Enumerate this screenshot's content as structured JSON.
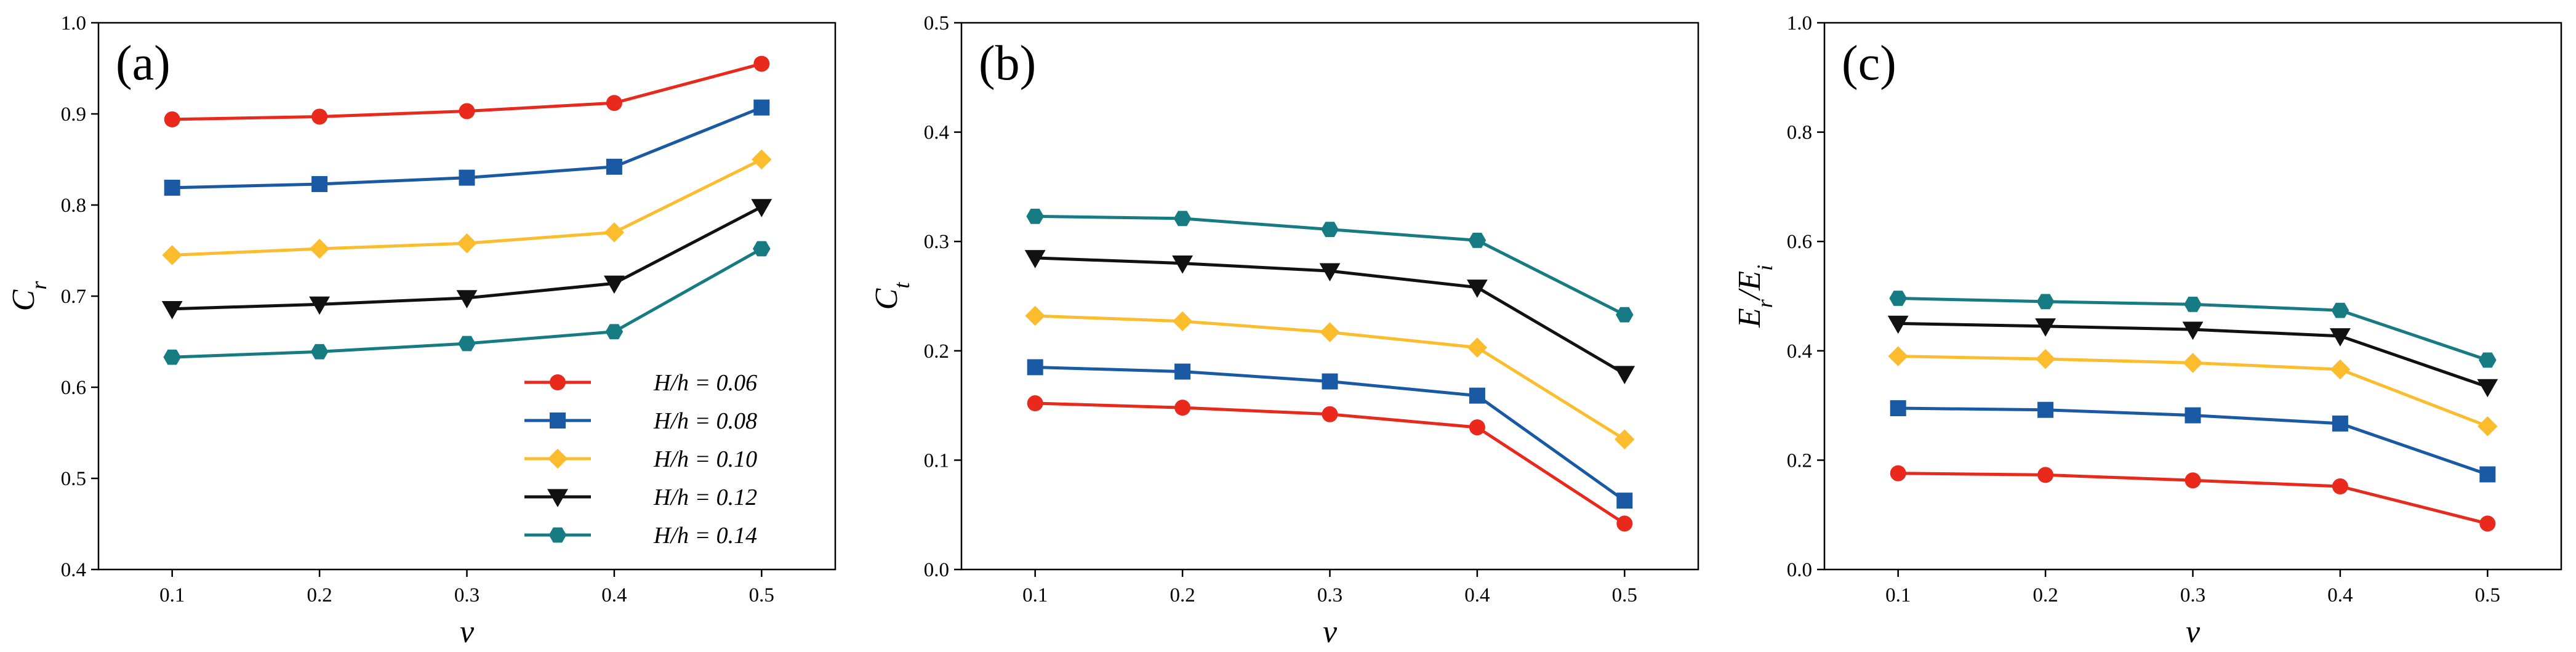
{
  "figure": {
    "title": "",
    "x_symbol": "v"
  },
  "colors": {
    "s006": "#e8291c",
    "s008": "#1a5aa5",
    "s010": "#fbbd2e",
    "s012": "#111111",
    "s014": "#167b82"
  },
  "legend": [
    {
      "label": "H/h = 0.06",
      "marker": "circle",
      "color_key": "s006"
    },
    {
      "label": "H/h = 0.08",
      "marker": "square",
      "color_key": "s008"
    },
    {
      "label": "H/h = 0.10",
      "marker": "diamond",
      "color_key": "s010"
    },
    {
      "label": "H/h = 0.12",
      "marker": "triangle-down",
      "color_key": "s012"
    },
    {
      "label": "H/h = 0.14",
      "marker": "hexagon",
      "color_key": "s014"
    }
  ],
  "chart_data": [
    {
      "type": "line",
      "panel_label": "(a)",
      "xlabel": "v",
      "ylabel_main": "C",
      "ylabel_sub": "r",
      "x": [
        0.1,
        0.2,
        0.3,
        0.4,
        0.5
      ],
      "xticks": [
        "0.1",
        "0.2",
        "0.3",
        "0.4",
        "0.5"
      ],
      "xlim": [
        0.05,
        0.55
      ],
      "ylim": [
        0.4,
        1.0
      ],
      "yticks": [
        "0.4",
        "0.5",
        "0.6",
        "0.7",
        "0.8",
        "0.9",
        "1.0"
      ],
      "ytick_values": [
        0.4,
        0.5,
        0.6,
        0.7,
        0.8,
        0.9,
        1.0
      ],
      "legend_position": "lower-right",
      "series": [
        {
          "name": "H/h = 0.06",
          "values": [
            0.894,
            0.897,
            0.903,
            0.912,
            0.955
          ]
        },
        {
          "name": "H/h = 0.08",
          "values": [
            0.819,
            0.823,
            0.83,
            0.842,
            0.907
          ]
        },
        {
          "name": "H/h = 0.10",
          "values": [
            0.745,
            0.752,
            0.758,
            0.77,
            0.85
          ]
        },
        {
          "name": "H/h = 0.12",
          "values": [
            0.686,
            0.691,
            0.698,
            0.714,
            0.798
          ]
        },
        {
          "name": "H/h = 0.14",
          "values": [
            0.633,
            0.639,
            0.648,
            0.661,
            0.752
          ]
        }
      ]
    },
    {
      "type": "line",
      "panel_label": "(b)",
      "xlabel": "v",
      "ylabel_main": "C",
      "ylabel_sub": "t",
      "x": [
        0.1,
        0.2,
        0.3,
        0.4,
        0.5
      ],
      "xticks": [
        "0.1",
        "0.2",
        "0.3",
        "0.4",
        "0.5"
      ],
      "xlim": [
        0.05,
        0.55
      ],
      "ylim": [
        0.0,
        0.5
      ],
      "yticks": [
        "0.0",
        "0.1",
        "0.2",
        "0.3",
        "0.4",
        "0.5"
      ],
      "ytick_values": [
        0.0,
        0.1,
        0.2,
        0.3,
        0.4,
        0.5
      ],
      "series": [
        {
          "name": "H/h = 0.06",
          "values": [
            0.152,
            0.148,
            0.142,
            0.13,
            0.042
          ]
        },
        {
          "name": "H/h = 0.08",
          "values": [
            0.185,
            0.181,
            0.172,
            0.159,
            0.063
          ]
        },
        {
          "name": "H/h = 0.10",
          "values": [
            0.232,
            0.227,
            0.217,
            0.203,
            0.119
          ]
        },
        {
          "name": "H/h = 0.12",
          "values": [
            0.285,
            0.28,
            0.273,
            0.258,
            0.179
          ]
        },
        {
          "name": "H/h = 0.14",
          "values": [
            0.323,
            0.321,
            0.311,
            0.301,
            0.233
          ]
        }
      ]
    },
    {
      "type": "line",
      "panel_label": "(c)",
      "xlabel": "v",
      "ylabel_main": "E",
      "ylabel_sub": "r",
      "ylabel_mid": "/E",
      "ylabel_sub2": "i",
      "x": [
        0.1,
        0.2,
        0.3,
        0.4,
        0.5
      ],
      "xticks": [
        "0.1",
        "0.2",
        "0.3",
        "0.4",
        "0.5"
      ],
      "xlim": [
        0.05,
        0.55
      ],
      "ylim": [
        0.0,
        1.0
      ],
      "yticks": [
        "0.0",
        "0.2",
        "0.4",
        "0.6",
        "0.8",
        "1.0"
      ],
      "ytick_values": [
        0.0,
        0.2,
        0.4,
        0.6,
        0.8,
        1.0
      ],
      "series": [
        {
          "name": "H/h = 0.06",
          "values": [
            0.176,
            0.173,
            0.163,
            0.152,
            0.084
          ]
        },
        {
          "name": "H/h = 0.08",
          "values": [
            0.295,
            0.292,
            0.282,
            0.267,
            0.174
          ]
        },
        {
          "name": "H/h = 0.10",
          "values": [
            0.39,
            0.385,
            0.378,
            0.366,
            0.262
          ]
        },
        {
          "name": "H/h = 0.12",
          "values": [
            0.45,
            0.445,
            0.439,
            0.427,
            0.334
          ]
        },
        {
          "name": "H/h = 0.14",
          "values": [
            0.496,
            0.49,
            0.485,
            0.474,
            0.383
          ]
        }
      ]
    }
  ]
}
